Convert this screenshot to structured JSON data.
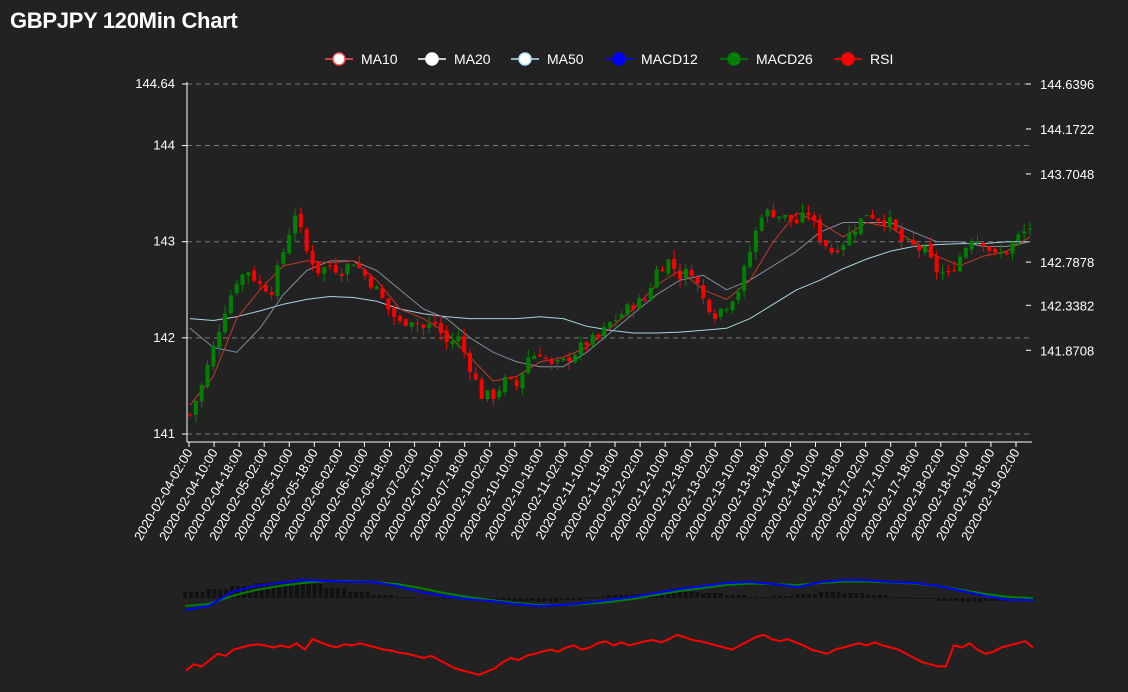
{
  "title": "GBPJPY 120Min Chart",
  "legend": [
    {
      "name": "MA10",
      "color": "#ff5252",
      "marker": "circle-hollow"
    },
    {
      "name": "MA20",
      "color": "#ffffff",
      "marker": "circle-filled"
    },
    {
      "name": "MA50",
      "color": "#b3e5fc",
      "marker": "circle-hollow"
    },
    {
      "name": "MACD12",
      "color": "#0000ff",
      "marker": "circle-filled"
    },
    {
      "name": "MACD26",
      "color": "#008000",
      "marker": "circle-filled"
    },
    {
      "name": "RSI",
      "color": "#ff0000",
      "marker": "circle-filled"
    }
  ],
  "colors": {
    "background": "#222222",
    "up_candle": "#008000",
    "down_candle": "#ff0000",
    "ma10": "#c0392b",
    "ma20": "#7f8c9d",
    "ma50": "#a7d4e0",
    "grid": "#777777",
    "macd_hist": "#111111"
  },
  "chart_data": {
    "type": "candlestick",
    "title": "GBPJPY 120Min Chart",
    "y_left_ticks": [
      "144.64",
      "144",
      "143",
      "142",
      "141"
    ],
    "y_left_tick_values": [
      144.64,
      144,
      143,
      142,
      141
    ],
    "y_right_ticks": [
      "144.6396",
      "144.1722",
      "143.7048",
      "142.7878",
      "142.3382",
      "141.8708"
    ],
    "y_right_tick_values": [
      144.6396,
      144.1722,
      143.7048,
      142.7878,
      142.3382,
      141.8708
    ],
    "ylim": [
      141,
      144.64
    ],
    "x_tick_labels": [
      "2020-02-04-02:00",
      "2020-02-04-10:00",
      "2020-02-04-18:00",
      "2020-02-05-02:00",
      "2020-02-05-10:00",
      "2020-02-05-18:00",
      "2020-02-06-02:00",
      "2020-02-06-10:00",
      "2020-02-06-18:00",
      "2020-02-07-02:00",
      "2020-02-07-10:00",
      "2020-02-07-18:00",
      "2020-02-10-02:00",
      "2020-02-10-10:00",
      "2020-02-10-18:00",
      "2020-02-11-02:00",
      "2020-02-11-10:00",
      "2020-02-11-18:00",
      "2020-02-12-02:00",
      "2020-02-12-10:00",
      "2020-02-12-18:00",
      "2020-02-13-02:00",
      "2020-02-13-10:00",
      "2020-02-13-18:00",
      "2020-02-14-02:00",
      "2020-02-14-10:00",
      "2020-02-14-18:00",
      "2020-02-17-02:00",
      "2020-02-17-10:00",
      "2020-02-17-18:00",
      "2020-02-18-02:00",
      "2020-02-18-10:00",
      "2020-02-18-18:00",
      "2020-02-19-02:00"
    ],
    "close_path": [
      [
        0,
        141.2
      ],
      [
        2,
        141.5
      ],
      [
        4,
        141.9
      ],
      [
        6,
        142.3
      ],
      [
        8,
        142.6
      ],
      [
        10,
        142.7
      ],
      [
        12,
        142.55
      ],
      [
        14,
        142.5
      ],
      [
        16,
        142.9
      ],
      [
        18,
        143.3
      ],
      [
        20,
        142.9
      ],
      [
        22,
        142.7
      ],
      [
        24,
        142.75
      ],
      [
        26,
        142.7
      ],
      [
        28,
        142.8
      ],
      [
        30,
        142.65
      ],
      [
        32,
        142.5
      ],
      [
        34,
        142.3
      ],
      [
        36,
        142.15
      ],
      [
        38,
        142.2
      ],
      [
        40,
        142.1
      ],
      [
        42,
        142.15
      ],
      [
        44,
        141.95
      ],
      [
        46,
        142.0
      ],
      [
        48,
        141.7
      ],
      [
        50,
        141.4
      ],
      [
        52,
        141.4
      ],
      [
        54,
        141.55
      ],
      [
        56,
        141.5
      ],
      [
        58,
        141.8
      ],
      [
        60,
        141.85
      ],
      [
        62,
        141.7
      ],
      [
        64,
        141.75
      ],
      [
        66,
        141.85
      ],
      [
        68,
        141.95
      ],
      [
        70,
        142.0
      ],
      [
        72,
        142.15
      ],
      [
        74,
        142.25
      ],
      [
        76,
        142.35
      ],
      [
        78,
        142.4
      ],
      [
        80,
        142.7
      ],
      [
        82,
        142.8
      ],
      [
        84,
        142.65
      ],
      [
        86,
        142.7
      ],
      [
        88,
        142.4
      ],
      [
        90,
        142.25
      ],
      [
        92,
        142.35
      ],
      [
        94,
        142.5
      ],
      [
        96,
        142.9
      ],
      [
        98,
        143.3
      ],
      [
        100,
        143.3
      ],
      [
        102,
        143.25
      ],
      [
        104,
        143.2
      ],
      [
        106,
        143.3
      ],
      [
        108,
        143.05
      ],
      [
        110,
        142.9
      ],
      [
        112,
        143.0
      ],
      [
        114,
        143.15
      ],
      [
        116,
        143.3
      ],
      [
        118,
        143.25
      ],
      [
        120,
        143.2
      ],
      [
        122,
        143.0
      ],
      [
        124,
        142.95
      ],
      [
        126,
        142.9
      ],
      [
        128,
        142.7
      ],
      [
        130,
        142.65
      ],
      [
        132,
        142.85
      ],
      [
        134,
        143.05
      ],
      [
        136,
        143.0
      ],
      [
        138,
        142.85
      ],
      [
        140,
        142.9
      ],
      [
        142,
        143.05
      ],
      [
        144,
        143.15
      ]
    ],
    "ma10_path": [
      [
        0,
        141.3
      ],
      [
        4,
        141.6
      ],
      [
        8,
        142.2
      ],
      [
        12,
        142.5
      ],
      [
        16,
        142.75
      ],
      [
        20,
        142.8
      ],
      [
        24,
        142.78
      ],
      [
        28,
        142.8
      ],
      [
        32,
        142.6
      ],
      [
        36,
        142.3
      ],
      [
        40,
        142.2
      ],
      [
        44,
        142.05
      ],
      [
        48,
        141.8
      ],
      [
        52,
        141.55
      ],
      [
        56,
        141.6
      ],
      [
        60,
        141.75
      ],
      [
        64,
        141.8
      ],
      [
        68,
        141.9
      ],
      [
        72,
        142.1
      ],
      [
        76,
        142.3
      ],
      [
        80,
        142.55
      ],
      [
        84,
        142.7
      ],
      [
        88,
        142.5
      ],
      [
        92,
        142.4
      ],
      [
        96,
        142.6
      ],
      [
        100,
        143.0
      ],
      [
        104,
        143.3
      ],
      [
        108,
        143.2
      ],
      [
        112,
        143.05
      ],
      [
        116,
        143.2
      ],
      [
        120,
        143.15
      ],
      [
        124,
        143.0
      ],
      [
        128,
        142.85
      ],
      [
        132,
        142.75
      ],
      [
        136,
        142.85
      ],
      [
        140,
        142.9
      ],
      [
        144,
        143.05
      ]
    ],
    "ma20_path": [
      [
        0,
        142.1
      ],
      [
        4,
        141.9
      ],
      [
        8,
        141.85
      ],
      [
        12,
        142.1
      ],
      [
        16,
        142.45
      ],
      [
        20,
        142.7
      ],
      [
        24,
        142.8
      ],
      [
        28,
        142.8
      ],
      [
        32,
        142.7
      ],
      [
        36,
        142.5
      ],
      [
        40,
        142.3
      ],
      [
        44,
        142.2
      ],
      [
        48,
        142.0
      ],
      [
        52,
        141.85
      ],
      [
        56,
        141.75
      ],
      [
        60,
        141.7
      ],
      [
        64,
        141.7
      ],
      [
        68,
        141.85
      ],
      [
        72,
        142.05
      ],
      [
        76,
        142.25
      ],
      [
        80,
        142.45
      ],
      [
        84,
        142.6
      ],
      [
        88,
        142.65
      ],
      [
        92,
        142.5
      ],
      [
        96,
        142.6
      ],
      [
        100,
        142.75
      ],
      [
        104,
        142.9
      ],
      [
        108,
        143.1
      ],
      [
        112,
        143.2
      ],
      [
        116,
        143.2
      ],
      [
        120,
        143.2
      ],
      [
        124,
        143.1
      ],
      [
        128,
        143.0
      ],
      [
        132,
        143.0
      ],
      [
        136,
        142.95
      ],
      [
        140,
        142.95
      ],
      [
        144,
        143.0
      ]
    ],
    "ma50_path": [
      [
        0,
        142.2
      ],
      [
        4,
        142.18
      ],
      [
        8,
        142.22
      ],
      [
        12,
        142.28
      ],
      [
        16,
        142.35
      ],
      [
        20,
        142.4
      ],
      [
        24,
        142.43
      ],
      [
        28,
        142.42
      ],
      [
        32,
        142.38
      ],
      [
        36,
        142.3
      ],
      [
        40,
        142.25
      ],
      [
        44,
        142.22
      ],
      [
        48,
        142.2
      ],
      [
        52,
        142.2
      ],
      [
        56,
        142.2
      ],
      [
        60,
        142.22
      ],
      [
        64,
        142.2
      ],
      [
        68,
        142.12
      ],
      [
        72,
        142.08
      ],
      [
        76,
        142.05
      ],
      [
        80,
        142.05
      ],
      [
        84,
        142.06
      ],
      [
        88,
        142.08
      ],
      [
        92,
        142.1
      ],
      [
        96,
        142.2
      ],
      [
        100,
        142.35
      ],
      [
        104,
        142.5
      ],
      [
        108,
        142.6
      ],
      [
        112,
        142.72
      ],
      [
        116,
        142.82
      ],
      [
        120,
        142.9
      ],
      [
        124,
        142.95
      ],
      [
        128,
        142.97
      ],
      [
        132,
        142.98
      ],
      [
        136,
        142.98
      ],
      [
        140,
        143.0
      ],
      [
        144,
        143.0
      ]
    ],
    "macd12_path": [
      [
        0,
        -0.6
      ],
      [
        4,
        -0.4
      ],
      [
        8,
        0.3
      ],
      [
        12,
        0.6
      ],
      [
        16,
        0.75
      ],
      [
        20,
        0.9
      ],
      [
        24,
        0.85
      ],
      [
        28,
        0.82
      ],
      [
        32,
        0.8
      ],
      [
        36,
        0.6
      ],
      [
        40,
        0.3
      ],
      [
        44,
        0.1
      ],
      [
        48,
        -0.05
      ],
      [
        52,
        -0.15
      ],
      [
        56,
        -0.3
      ],
      [
        60,
        -0.4
      ],
      [
        64,
        -0.35
      ],
      [
        68,
        -0.25
      ],
      [
        72,
        -0.1
      ],
      [
        76,
        0.05
      ],
      [
        80,
        0.25
      ],
      [
        84,
        0.45
      ],
      [
        88,
        0.6
      ],
      [
        92,
        0.75
      ],
      [
        96,
        0.8
      ],
      [
        100,
        0.7
      ],
      [
        104,
        0.55
      ],
      [
        108,
        0.8
      ],
      [
        112,
        0.9
      ],
      [
        116,
        0.88
      ],
      [
        120,
        0.8
      ],
      [
        124,
        0.75
      ],
      [
        128,
        0.6
      ],
      [
        132,
        0.35
      ],
      [
        136,
        0.1
      ],
      [
        140,
        -0.1
      ],
      [
        144,
        -0.1
      ]
    ],
    "macd26_path": [
      [
        0,
        -0.4
      ],
      [
        4,
        -0.3
      ],
      [
        8,
        0.1
      ],
      [
        12,
        0.4
      ],
      [
        16,
        0.6
      ],
      [
        20,
        0.75
      ],
      [
        24,
        0.85
      ],
      [
        28,
        0.85
      ],
      [
        32,
        0.8
      ],
      [
        36,
        0.7
      ],
      [
        40,
        0.5
      ],
      [
        44,
        0.25
      ],
      [
        48,
        0.05
      ],
      [
        52,
        -0.1
      ],
      [
        56,
        -0.25
      ],
      [
        60,
        -0.35
      ],
      [
        64,
        -0.35
      ],
      [
        68,
        -0.3
      ],
      [
        72,
        -0.2
      ],
      [
        76,
        -0.05
      ],
      [
        80,
        0.15
      ],
      [
        84,
        0.35
      ],
      [
        88,
        0.5
      ],
      [
        92,
        0.65
      ],
      [
        96,
        0.72
      ],
      [
        100,
        0.7
      ],
      [
        104,
        0.65
      ],
      [
        108,
        0.75
      ],
      [
        112,
        0.82
      ],
      [
        116,
        0.82
      ],
      [
        120,
        0.78
      ],
      [
        124,
        0.72
      ],
      [
        128,
        0.6
      ],
      [
        132,
        0.4
      ],
      [
        136,
        0.2
      ],
      [
        140,
        0.05
      ],
      [
        144,
        0.0
      ]
    ],
    "macd_hist": [
      0.3,
      0.45,
      0.6,
      0.75,
      0.8,
      0.7,
      0.5,
      0.3,
      0.15,
      0.05,
      0.0,
      -0.05,
      -0.1,
      -0.1,
      -0.15,
      -0.2,
      -0.1,
      0.05,
      0.15,
      0.2,
      0.25,
      0.3,
      0.25,
      0.15,
      0.05,
      0.1,
      0.2,
      0.3,
      0.25,
      0.15,
      0.05,
      -0.05,
      -0.15,
      -0.2,
      -0.15,
      -0.1,
      -0.05
    ],
    "rsi_path": [
      [
        0,
        28
      ],
      [
        1,
        34
      ],
      [
        2,
        32
      ],
      [
        3,
        38
      ],
      [
        4,
        44
      ],
      [
        5,
        42
      ],
      [
        6,
        48
      ],
      [
        7,
        50
      ],
      [
        8,
        52
      ],
      [
        9,
        53
      ],
      [
        10,
        52
      ],
      [
        11,
        50
      ],
      [
        12,
        52
      ],
      [
        13,
        50
      ],
      [
        14,
        54
      ],
      [
        15,
        48
      ],
      [
        16,
        58
      ],
      [
        17,
        55
      ],
      [
        18,
        52
      ],
      [
        19,
        50
      ],
      [
        20,
        53
      ],
      [
        21,
        52
      ],
      [
        22,
        54
      ],
      [
        23,
        52
      ],
      [
        24,
        50
      ],
      [
        25,
        48
      ],
      [
        26,
        47
      ],
      [
        27,
        45
      ],
      [
        28,
        44
      ],
      [
        29,
        42
      ],
      [
        30,
        40
      ],
      [
        31,
        42
      ],
      [
        32,
        38
      ],
      [
        33,
        34
      ],
      [
        34,
        30
      ],
      [
        35,
        28
      ],
      [
        36,
        26
      ],
      [
        37,
        24
      ],
      [
        38,
        27
      ],
      [
        39,
        30
      ],
      [
        40,
        36
      ],
      [
        41,
        40
      ],
      [
        42,
        38
      ],
      [
        43,
        42
      ],
      [
        44,
        44
      ],
      [
        45,
        46
      ],
      [
        46,
        48
      ],
      [
        47,
        46
      ],
      [
        48,
        50
      ],
      [
        49,
        52
      ],
      [
        50,
        48
      ],
      [
        51,
        50
      ],
      [
        52,
        54
      ],
      [
        53,
        56
      ],
      [
        54,
        52
      ],
      [
        55,
        55
      ],
      [
        56,
        52
      ],
      [
        57,
        54
      ],
      [
        58,
        56
      ],
      [
        59,
        57
      ],
      [
        60,
        55
      ],
      [
        61,
        58
      ],
      [
        62,
        62
      ],
      [
        63,
        60
      ],
      [
        64,
        57
      ],
      [
        65,
        56
      ],
      [
        66,
        54
      ],
      [
        67,
        52
      ],
      [
        68,
        50
      ],
      [
        69,
        48
      ],
      [
        70,
        52
      ],
      [
        71,
        56
      ],
      [
        72,
        60
      ],
      [
        73,
        62
      ],
      [
        74,
        58
      ],
      [
        75,
        56
      ],
      [
        76,
        58
      ],
      [
        77,
        55
      ],
      [
        78,
        52
      ],
      [
        79,
        48
      ],
      [
        80,
        46
      ],
      [
        81,
        44
      ],
      [
        82,
        48
      ],
      [
        83,
        50
      ],
      [
        84,
        52
      ],
      [
        85,
        54
      ],
      [
        86,
        52
      ],
      [
        87,
        55
      ],
      [
        88,
        52
      ],
      [
        89,
        50
      ],
      [
        90,
        48
      ],
      [
        91,
        44
      ],
      [
        92,
        40
      ],
      [
        93,
        36
      ],
      [
        94,
        34
      ],
      [
        95,
        32
      ],
      [
        96,
        32
      ],
      [
        97,
        52
      ],
      [
        98,
        50
      ],
      [
        99,
        54
      ],
      [
        100,
        48
      ],
      [
        101,
        44
      ],
      [
        102,
        46
      ],
      [
        103,
        50
      ],
      [
        104,
        52
      ],
      [
        105,
        54
      ],
      [
        106,
        56
      ],
      [
        107,
        50
      ]
    ]
  }
}
